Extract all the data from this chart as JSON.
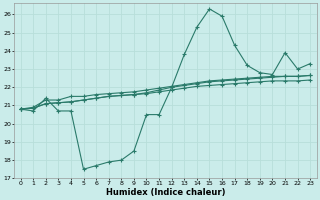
{
  "xlabel": "Humidex (Indice chaleur)",
  "bg_color": "#caecea",
  "grid_color": "#b8deda",
  "line_color": "#2a7a6a",
  "xlim": [
    -0.5,
    23.5
  ],
  "ylim": [
    17,
    26.6
  ],
  "yticks": [
    17,
    18,
    19,
    20,
    21,
    22,
    23,
    24,
    25,
    26
  ],
  "xticks": [
    0,
    1,
    2,
    3,
    4,
    5,
    6,
    7,
    8,
    9,
    10,
    11,
    12,
    13,
    14,
    15,
    16,
    17,
    18,
    19,
    20,
    21,
    22,
    23
  ],
  "series": [
    [
      20.8,
      20.7,
      21.4,
      20.7,
      20.7,
      17.5,
      17.7,
      17.9,
      18.0,
      18.5,
      20.5,
      20.5,
      22.0,
      23.8,
      25.3,
      26.3,
      25.9,
      24.3,
      23.2,
      22.8,
      22.7,
      23.9,
      23.0,
      23.3
    ],
    [
      20.8,
      20.9,
      21.3,
      21.3,
      21.5,
      21.5,
      21.6,
      21.65,
      21.7,
      21.75,
      21.85,
      21.95,
      22.05,
      22.15,
      22.25,
      22.35,
      22.4,
      22.45,
      22.5,
      22.55,
      22.6,
      22.6,
      22.6,
      22.65
    ],
    [
      20.8,
      20.85,
      21.1,
      21.15,
      21.2,
      21.3,
      21.4,
      21.5,
      21.55,
      21.6,
      21.65,
      21.75,
      21.85,
      21.95,
      22.05,
      22.1,
      22.15,
      22.2,
      22.25,
      22.3,
      22.35,
      22.35,
      22.35,
      22.4
    ],
    [
      20.8,
      20.85,
      21.1,
      21.15,
      21.2,
      21.3,
      21.4,
      21.5,
      21.55,
      21.6,
      21.7,
      21.85,
      22.0,
      22.1,
      22.2,
      22.3,
      22.35,
      22.4,
      22.45,
      22.5,
      22.55,
      22.6,
      22.6,
      22.65
    ]
  ]
}
